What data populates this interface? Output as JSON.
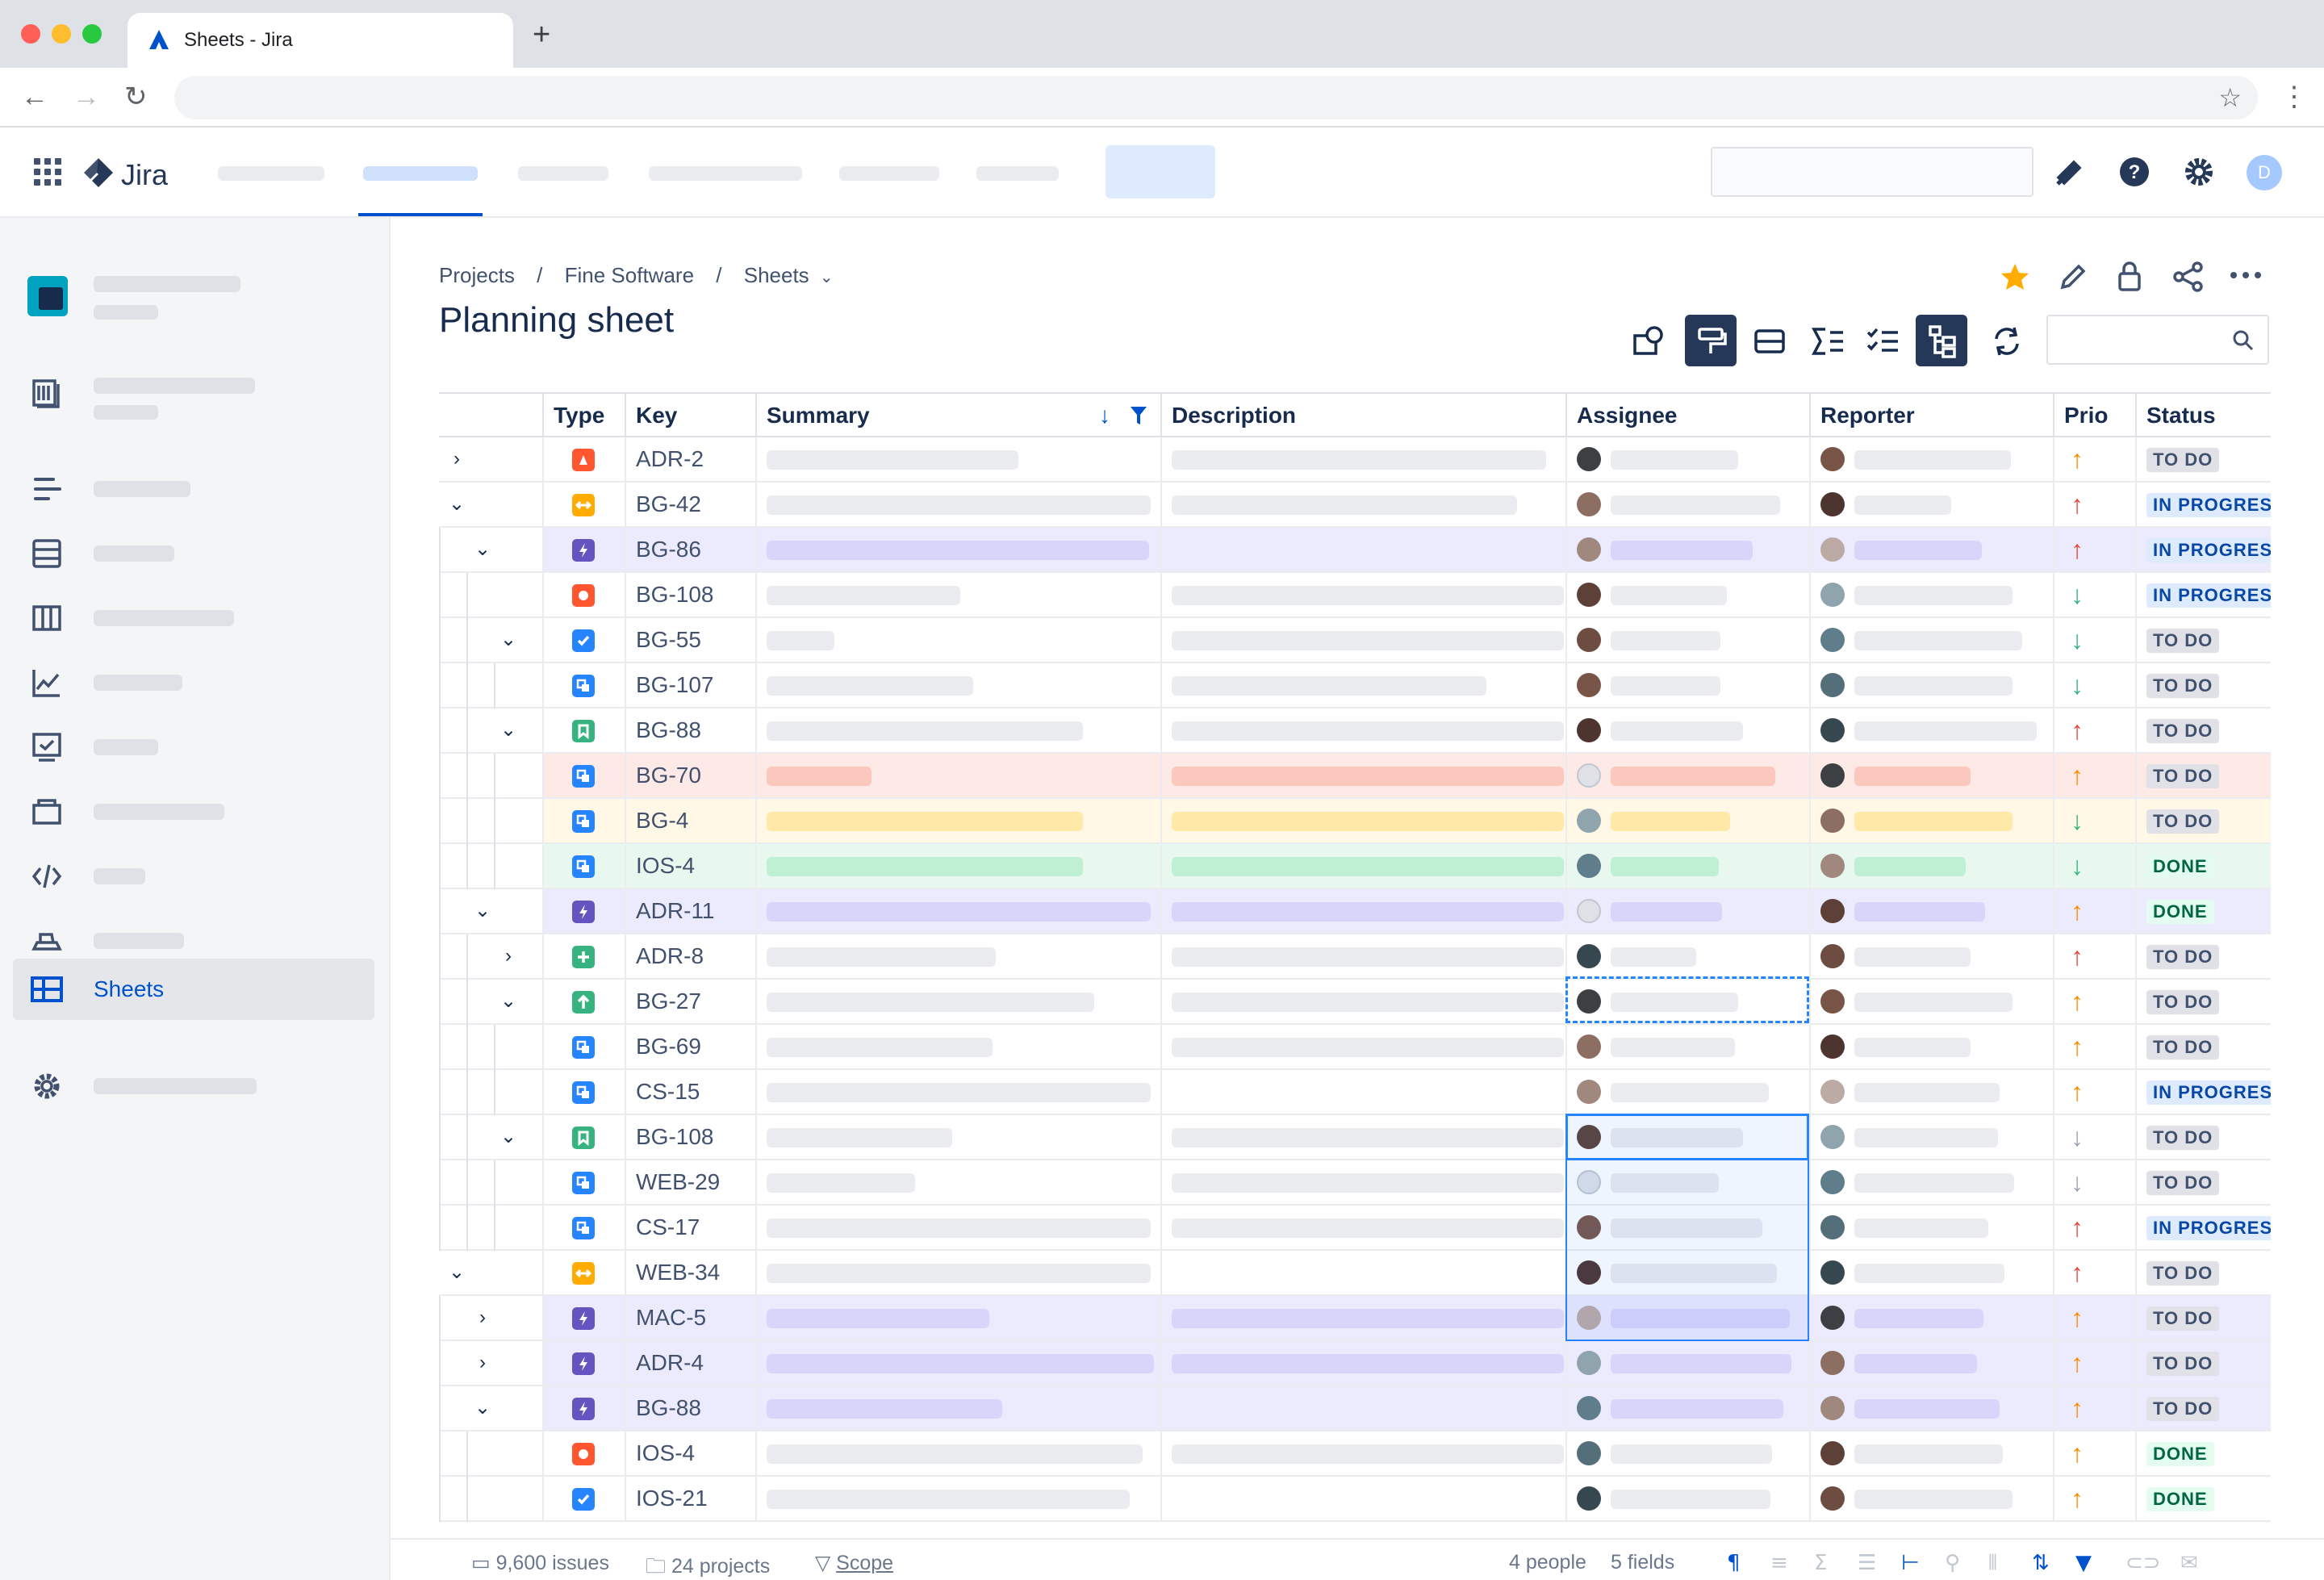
{
  "browser": {
    "tab_title": "Sheets - Jira",
    "new_tab_symbol": "+"
  },
  "app": {
    "name": "Jira",
    "user_initial": "D"
  },
  "sidebar": {
    "active_item": "Sheets"
  },
  "breadcrumb": {
    "items": [
      "Projects",
      "Fine Software",
      "Sheets"
    ],
    "separator": "/"
  },
  "page": {
    "title": "Planning sheet"
  },
  "columns": {
    "type": "Type",
    "key": "Key",
    "summary": "Summary",
    "description": "Description",
    "assignee": "Assignee",
    "reporter": "Reporter",
    "prio": "Prio",
    "status": "Status"
  },
  "rows": [
    {
      "key": "ADR-2",
      "type": "bug",
      "chevron": "›",
      "indent": 0,
      "prio": "up",
      "prio_color": "orange",
      "status": "TO DO",
      "tint": ""
    },
    {
      "key": "BG-42",
      "type": "subtask-orange",
      "chevron": "⌄",
      "indent": 0,
      "prio": "up",
      "prio_color": "red",
      "status": "IN PROGRESS",
      "tint": ""
    },
    {
      "key": "BG-86",
      "type": "epic",
      "chevron": "⌄",
      "indent": 1,
      "prio": "up",
      "prio_color": "red",
      "status": "IN PROGRESS",
      "tint": "purple"
    },
    {
      "key": "BG-108",
      "type": "defect",
      "chevron": "",
      "indent": 2,
      "prio": "down",
      "prio_color": "green",
      "status": "IN PROGRESS",
      "tint": ""
    },
    {
      "key": "BG-55",
      "type": "task",
      "chevron": "⌄",
      "indent": 2,
      "prio": "down",
      "prio_color": "green",
      "status": "TO DO",
      "tint": ""
    },
    {
      "key": "BG-107",
      "type": "subtask",
      "chevron": "",
      "indent": 3,
      "prio": "down",
      "prio_color": "green",
      "status": "TO DO",
      "tint": ""
    },
    {
      "key": "BG-88",
      "type": "story",
      "chevron": "⌄",
      "indent": 2,
      "prio": "up",
      "prio_color": "red",
      "status": "TO DO",
      "tint": ""
    },
    {
      "key": "BG-70",
      "type": "subtask",
      "chevron": "",
      "indent": 3,
      "prio": "up",
      "prio_color": "orange",
      "status": "TO DO",
      "tint": "red"
    },
    {
      "key": "BG-4",
      "type": "subtask",
      "chevron": "",
      "indent": 3,
      "prio": "down",
      "prio_color": "green",
      "status": "TO DO",
      "tint": "yellow"
    },
    {
      "key": "IOS-4",
      "type": "subtask",
      "chevron": "",
      "indent": 3,
      "prio": "down",
      "prio_color": "green",
      "status": "DONE",
      "tint": "green"
    },
    {
      "key": "ADR-11",
      "type": "epic",
      "chevron": "⌄",
      "indent": 1,
      "prio": "up",
      "prio_color": "orange",
      "status": "DONE",
      "tint": "purple"
    },
    {
      "key": "ADR-8",
      "type": "newfeature",
      "chevron": "›",
      "indent": 2,
      "prio": "up",
      "prio_color": "red",
      "status": "TO DO",
      "tint": ""
    },
    {
      "key": "BG-27",
      "type": "improvement",
      "chevron": "⌄",
      "indent": 2,
      "prio": "up",
      "prio_color": "orange",
      "status": "TO DO",
      "tint": ""
    },
    {
      "key": "BG-69",
      "type": "subtask",
      "chevron": "",
      "indent": 3,
      "prio": "up",
      "prio_color": "orange",
      "status": "TO DO",
      "tint": ""
    },
    {
      "key": "CS-15",
      "type": "subtask",
      "chevron": "",
      "indent": 3,
      "prio": "up",
      "prio_color": "orange",
      "status": "IN PROGRESS",
      "tint": ""
    },
    {
      "key": "BG-108",
      "type": "story",
      "chevron": "⌄",
      "indent": 2,
      "prio": "down",
      "prio_color": "grey",
      "status": "TO DO",
      "tint": ""
    },
    {
      "key": "WEB-29",
      "type": "subtask",
      "chevron": "",
      "indent": 3,
      "prio": "down",
      "prio_color": "grey",
      "status": "TO DO",
      "tint": ""
    },
    {
      "key": "CS-17",
      "type": "subtask",
      "chevron": "",
      "indent": 3,
      "prio": "up",
      "prio_color": "red",
      "status": "IN PROGRESS",
      "tint": ""
    },
    {
      "key": "WEB-34",
      "type": "subtask-orange",
      "chevron": "⌄",
      "indent": 0,
      "prio": "up",
      "prio_color": "red",
      "status": "TO DO",
      "tint": ""
    },
    {
      "key": "MAC-5",
      "type": "epic",
      "chevron": "›",
      "indent": 1,
      "prio": "up",
      "prio_color": "orange",
      "status": "TO DO",
      "tint": "purple"
    },
    {
      "key": "ADR-4",
      "type": "epic",
      "chevron": "›",
      "indent": 1,
      "prio": "up",
      "prio_color": "orange",
      "status": "TO DO",
      "tint": "purple"
    },
    {
      "key": "BG-88",
      "type": "epic",
      "chevron": "⌄",
      "indent": 1,
      "prio": "up",
      "prio_color": "orange",
      "status": "TO DO",
      "tint": "purple"
    },
    {
      "key": "IOS-4",
      "type": "defect",
      "chevron": "",
      "indent": 2,
      "prio": "up",
      "prio_color": "orange",
      "status": "DONE",
      "tint": ""
    },
    {
      "key": "IOS-21",
      "type": "task",
      "chevron": "",
      "indent": 2,
      "prio": "up",
      "prio_color": "orange",
      "status": "DONE",
      "tint": ""
    }
  ],
  "footer": {
    "issues": "9,600 issues",
    "projects": "24 projects",
    "scope": "Scope",
    "people": "4 people",
    "fields": "5 fields"
  },
  "colors": {
    "brand": "#0052cc",
    "tint_purple": "#ecebfd",
    "tint_red": "#fde9e6",
    "tint_yellow": "#fff8e6",
    "tint_green": "#e8f8ef",
    "selection": "#e9f0fd"
  }
}
